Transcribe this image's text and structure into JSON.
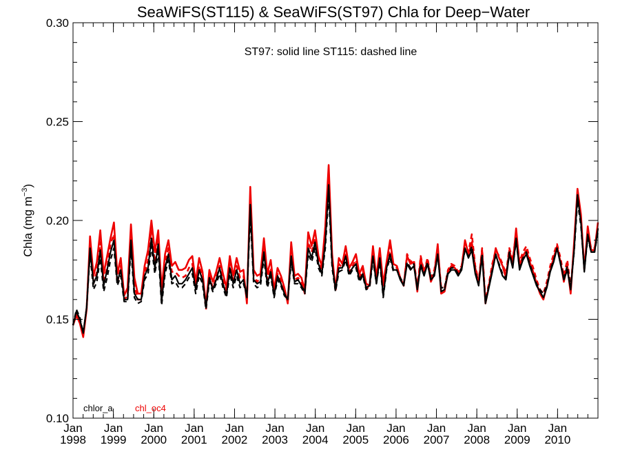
{
  "chart_data": {
    "type": "line",
    "title": "SeaWiFS(ST115) & SeaWiFS(ST97)  Chla for Deep−Water",
    "subtitle": "ST97: solid line   ST115: dashed line",
    "ylabel_main": "Chla (mg m",
    "ylabel_sup": "−3",
    "ylabel_close": ")",
    "ylim": [
      0.1,
      0.3
    ],
    "xlim": [
      1998.0,
      2011.0
    ],
    "yticks": [
      {
        "value": 0.1,
        "label": "0.10"
      },
      {
        "value": 0.15,
        "label": "0.15"
      },
      {
        "value": 0.2,
        "label": "0.20"
      },
      {
        "value": 0.25,
        "label": "0.25"
      },
      {
        "value": 0.3,
        "label": "0.30"
      }
    ],
    "xticks": [
      {
        "value": 1998,
        "month": "Jan",
        "year": "1998"
      },
      {
        "value": 1999,
        "month": "Jan",
        "year": "1999"
      },
      {
        "value": 2000,
        "month": "Jan",
        "year": "2000"
      },
      {
        "value": 2001,
        "month": "Jan",
        "year": "2001"
      },
      {
        "value": 2002,
        "month": "Jan",
        "year": "2002"
      },
      {
        "value": 2003,
        "month": "Jan",
        "year": "2003"
      },
      {
        "value": 2004,
        "month": "Jan",
        "year": "2004"
      },
      {
        "value": 2005,
        "month": "Jan",
        "year": "2005"
      },
      {
        "value": 2006,
        "month": "Jan",
        "year": "2006"
      },
      {
        "value": 2007,
        "month": "Jan",
        "year": "2007"
      },
      {
        "value": 2008,
        "month": "Jan",
        "year": "2008"
      },
      {
        "value": 2009,
        "month": "Jan",
        "year": "2009"
      },
      {
        "value": 2010,
        "month": "Jan",
        "year": "2010"
      }
    ],
    "legend": [
      {
        "label": "chlor_a",
        "color": "#000000"
      },
      {
        "label": "chl_oc4",
        "color": "#ee0000"
      }
    ],
    "series": [
      {
        "name": "chl_oc4 ST97",
        "color": "#ee0000",
        "style": "solid",
        "values": [
          0.147,
          0.152,
          0.148,
          0.141,
          0.155,
          0.192,
          0.172,
          0.179,
          0.195,
          0.173,
          0.182,
          0.191,
          0.199,
          0.173,
          0.181,
          0.162,
          0.166,
          0.198,
          0.171,
          0.163,
          0.163,
          0.177,
          0.185,
          0.2,
          0.184,
          0.195,
          0.165,
          0.183,
          0.19,
          0.177,
          0.179,
          0.175,
          0.175,
          0.176,
          0.18,
          0.182,
          0.169,
          0.181,
          0.174,
          0.157,
          0.175,
          0.169,
          0.174,
          0.181,
          0.173,
          0.166,
          0.182,
          0.172,
          0.181,
          0.174,
          0.175,
          0.158,
          0.217,
          0.175,
          0.172,
          0.173,
          0.191,
          0.173,
          0.18,
          0.165,
          0.176,
          0.172,
          0.166,
          0.158,
          0.189,
          0.172,
          0.173,
          0.171,
          0.165,
          0.194,
          0.187,
          0.195,
          0.182,
          0.177,
          0.197,
          0.228,
          0.183,
          0.165,
          0.181,
          0.178,
          0.187,
          0.176,
          0.179,
          0.183,
          0.173,
          0.177,
          0.168,
          0.167,
          0.187,
          0.171,
          0.186,
          0.168,
          0.179,
          0.19,
          0.178,
          0.177,
          0.171,
          0.167,
          0.182,
          0.178,
          0.179,
          0.164,
          0.181,
          0.173,
          0.18,
          0.169,
          0.173,
          0.188,
          0.163,
          0.164,
          0.174,
          0.177,
          0.176,
          0.173,
          0.176,
          0.19,
          0.183,
          0.189,
          0.176,
          0.168,
          0.185,
          0.158,
          0.167,
          0.176,
          0.186,
          0.181,
          0.177,
          0.171,
          0.185,
          0.178,
          0.196,
          0.177,
          0.182,
          0.185,
          0.179,
          0.174,
          0.168,
          0.163,
          0.16,
          0.167,
          0.175,
          0.181,
          0.187,
          0.179,
          0.169,
          0.177,
          0.163,
          0.189,
          0.216,
          0.203,
          0.175,
          0.197,
          0.185,
          0.185,
          0.199
        ]
      },
      {
        "name": "chl_oc4 ST115",
        "color": "#ee0000",
        "style": "dashed",
        "values": [
          0.147,
          0.153,
          0.149,
          0.142,
          0.156,
          0.188,
          0.168,
          0.174,
          0.189,
          0.169,
          0.176,
          0.188,
          0.193,
          0.168,
          0.177,
          0.16,
          0.162,
          0.193,
          0.167,
          0.16,
          0.16,
          0.173,
          0.18,
          0.195,
          0.179,
          0.192,
          0.161,
          0.178,
          0.186,
          0.174,
          0.174,
          0.172,
          0.171,
          0.172,
          0.176,
          0.178,
          0.166,
          0.177,
          0.171,
          0.155,
          0.172,
          0.166,
          0.171,
          0.177,
          0.17,
          0.163,
          0.178,
          0.17,
          0.177,
          0.171,
          0.172,
          0.16,
          0.211,
          0.172,
          0.169,
          0.171,
          0.186,
          0.17,
          0.176,
          0.163,
          0.173,
          0.17,
          0.164,
          0.159,
          0.185,
          0.17,
          0.171,
          0.169,
          0.163,
          0.189,
          0.184,
          0.191,
          0.179,
          0.175,
          0.193,
          0.222,
          0.18,
          0.164,
          0.178,
          0.176,
          0.184,
          0.174,
          0.177,
          0.18,
          0.171,
          0.175,
          0.166,
          0.166,
          0.184,
          0.17,
          0.183,
          0.167,
          0.177,
          0.187,
          0.177,
          0.176,
          0.171,
          0.167,
          0.183,
          0.179,
          0.18,
          0.166,
          0.182,
          0.174,
          0.181,
          0.171,
          0.175,
          0.186,
          0.166,
          0.166,
          0.175,
          0.178,
          0.177,
          0.174,
          0.177,
          0.189,
          0.184,
          0.193,
          0.177,
          0.169,
          0.186,
          0.16,
          0.168,
          0.178,
          0.185,
          0.182,
          0.178,
          0.173,
          0.186,
          0.18,
          0.194,
          0.179,
          0.184,
          0.187,
          0.181,
          0.176,
          0.17,
          0.165,
          0.163,
          0.169,
          0.177,
          0.183,
          0.188,
          0.181,
          0.172,
          0.18,
          0.166,
          0.187,
          0.213,
          0.201,
          0.176,
          0.194,
          0.186,
          0.186,
          0.196
        ]
      },
      {
        "name": "chlor_a ST97",
        "color": "#000000",
        "style": "solid",
        "values": [
          0.147,
          0.154,
          0.15,
          0.143,
          0.156,
          0.186,
          0.168,
          0.172,
          0.185,
          0.167,
          0.175,
          0.184,
          0.19,
          0.169,
          0.175,
          0.16,
          0.16,
          0.19,
          0.163,
          0.16,
          0.16,
          0.172,
          0.176,
          0.191,
          0.176,
          0.188,
          0.159,
          0.176,
          0.183,
          0.17,
          0.172,
          0.168,
          0.168,
          0.17,
          0.173,
          0.176,
          0.165,
          0.175,
          0.17,
          0.156,
          0.171,
          0.165,
          0.17,
          0.176,
          0.168,
          0.162,
          0.176,
          0.168,
          0.175,
          0.168,
          0.17,
          0.161,
          0.208,
          0.17,
          0.168,
          0.169,
          0.184,
          0.168,
          0.174,
          0.162,
          0.172,
          0.168,
          0.163,
          0.16,
          0.182,
          0.169,
          0.17,
          0.167,
          0.164,
          0.186,
          0.181,
          0.189,
          0.178,
          0.173,
          0.189,
          0.218,
          0.178,
          0.165,
          0.176,
          0.176,
          0.182,
          0.173,
          0.176,
          0.178,
          0.17,
          0.173,
          0.166,
          0.167,
          0.182,
          0.168,
          0.181,
          0.162,
          0.176,
          0.183,
          0.175,
          0.175,
          0.17,
          0.167,
          0.178,
          0.175,
          0.177,
          0.165,
          0.177,
          0.172,
          0.178,
          0.17,
          0.172,
          0.183,
          0.164,
          0.165,
          0.173,
          0.175,
          0.175,
          0.172,
          0.175,
          0.186,
          0.181,
          0.185,
          0.173,
          0.167,
          0.182,
          0.158,
          0.166,
          0.174,
          0.183,
          0.177,
          0.172,
          0.17,
          0.183,
          0.176,
          0.191,
          0.175,
          0.18,
          0.183,
          0.177,
          0.172,
          0.167,
          0.164,
          0.161,
          0.166,
          0.174,
          0.179,
          0.186,
          0.178,
          0.17,
          0.175,
          0.165,
          0.185,
          0.213,
          0.199,
          0.174,
          0.193,
          0.184,
          0.184,
          0.196
        ]
      },
      {
        "name": "chlor_a ST115",
        "color": "#000000",
        "style": "dashed",
        "values": [
          0.147,
          0.155,
          0.151,
          0.143,
          0.156,
          0.183,
          0.165,
          0.169,
          0.181,
          0.164,
          0.171,
          0.18,
          0.186,
          0.167,
          0.172,
          0.159,
          0.159,
          0.186,
          0.161,
          0.158,
          0.159,
          0.17,
          0.173,
          0.187,
          0.173,
          0.184,
          0.157,
          0.173,
          0.18,
          0.168,
          0.169,
          0.166,
          0.166,
          0.168,
          0.171,
          0.173,
          0.163,
          0.172,
          0.168,
          0.155,
          0.169,
          0.164,
          0.168,
          0.173,
          0.166,
          0.161,
          0.173,
          0.166,
          0.172,
          0.166,
          0.168,
          0.162,
          0.203,
          0.168,
          0.166,
          0.167,
          0.181,
          0.166,
          0.172,
          0.161,
          0.17,
          0.167,
          0.162,
          0.16,
          0.179,
          0.168,
          0.168,
          0.166,
          0.163,
          0.183,
          0.179,
          0.186,
          0.176,
          0.172,
          0.186,
          0.213,
          0.176,
          0.164,
          0.174,
          0.175,
          0.18,
          0.172,
          0.175,
          0.176,
          0.169,
          0.172,
          0.165,
          0.166,
          0.18,
          0.168,
          0.179,
          0.161,
          0.175,
          0.181,
          0.174,
          0.175,
          0.171,
          0.168,
          0.179,
          0.176,
          0.178,
          0.166,
          0.178,
          0.173,
          0.179,
          0.171,
          0.173,
          0.182,
          0.166,
          0.166,
          0.174,
          0.176,
          0.176,
          0.173,
          0.176,
          0.185,
          0.182,
          0.187,
          0.174,
          0.168,
          0.183,
          0.159,
          0.167,
          0.175,
          0.182,
          0.178,
          0.173,
          0.171,
          0.184,
          0.177,
          0.189,
          0.176,
          0.181,
          0.184,
          0.178,
          0.173,
          0.168,
          0.165,
          0.163,
          0.167,
          0.175,
          0.18,
          0.186,
          0.179,
          0.171,
          0.177,
          0.166,
          0.184,
          0.21,
          0.197,
          0.175,
          0.191,
          0.184,
          0.184,
          0.194
        ]
      }
    ]
  }
}
